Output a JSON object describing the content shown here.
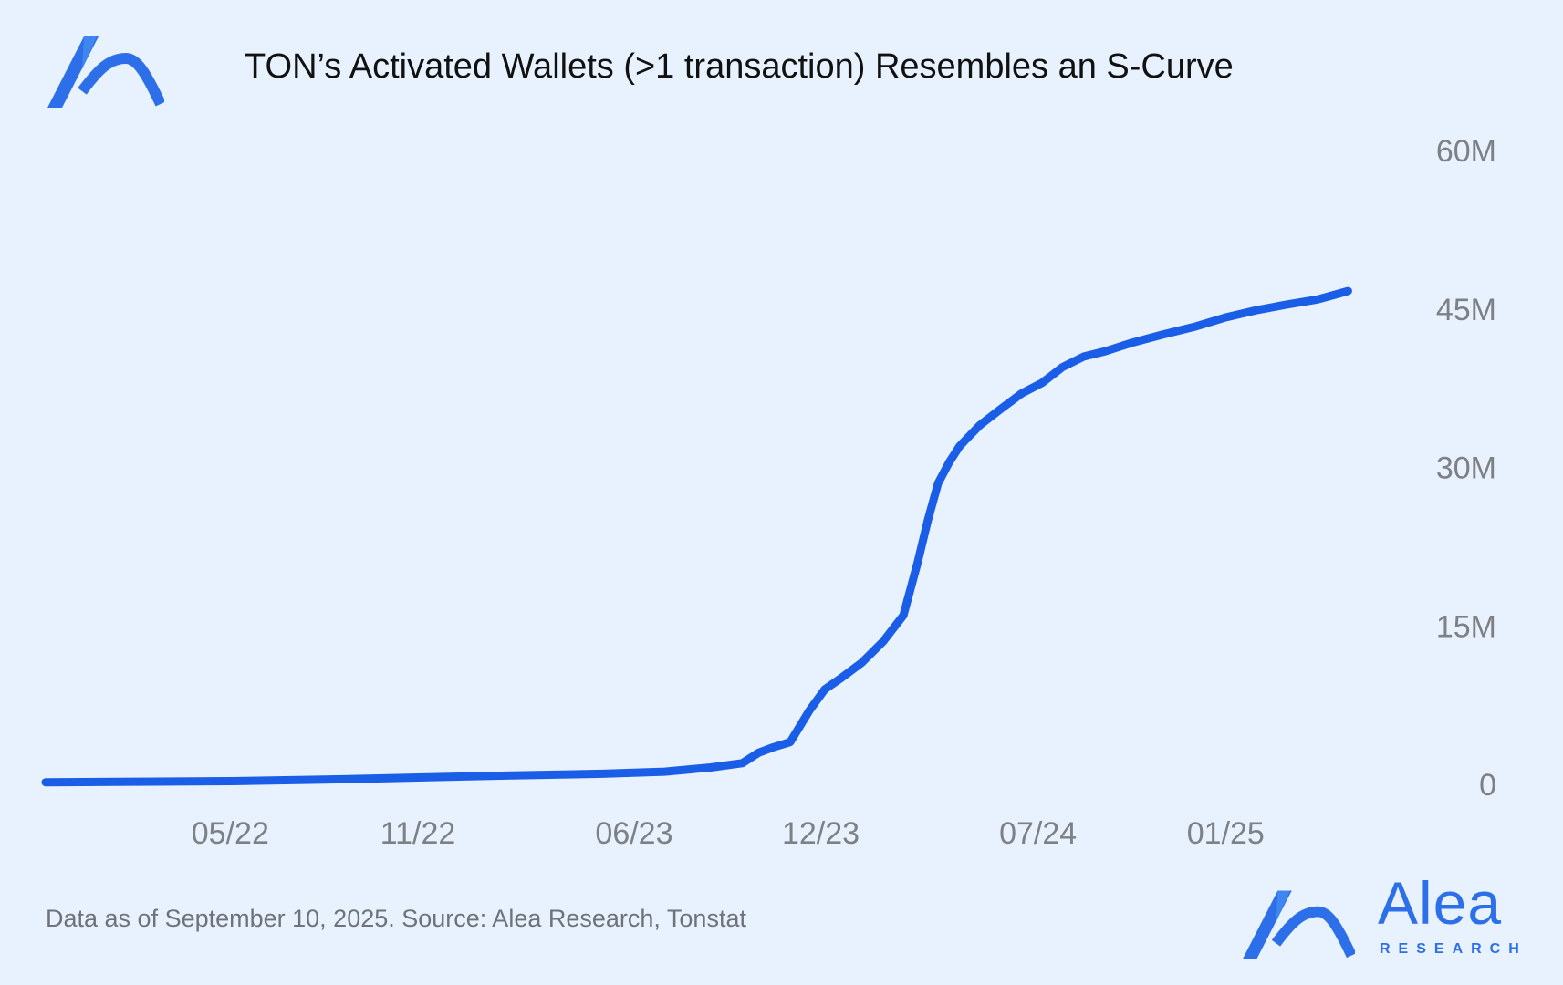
{
  "header": {
    "title": "TON’s Activated Wallets (>1 transaction) Resembles an S-Curve",
    "logo_icon": "alea-logo-icon"
  },
  "footer": {
    "note": "Data as of September 10, 2025. Source: Alea Research, Tonstat"
  },
  "brand": {
    "name": "Alea",
    "subtitle": "RESEARCH",
    "icon": "alea-logo-icon"
  },
  "colors": {
    "background": "#e8f2fe",
    "line": "#1a5ee8",
    "brand": "#2d6fe8",
    "tick_text": "#7d8084"
  },
  "chart_data": {
    "type": "line",
    "title": "TON’s Activated Wallets (>1 transaction) Resembles an S-Curve",
    "xlabel": "",
    "ylabel": "",
    "x_ticks": [
      "05/22",
      "11/22",
      "06/23",
      "12/23",
      "07/24",
      "01/25"
    ],
    "x_tick_dates": [
      "2022-05-01",
      "2022-11-01",
      "2023-06-01",
      "2023-12-01",
      "2024-07-01",
      "2025-01-01"
    ],
    "y_ticks": [
      "0",
      "15M",
      "30M",
      "45M",
      "60M"
    ],
    "y_tick_values": [
      0,
      15000000,
      30000000,
      45000000,
      60000000
    ],
    "ylim": [
      0,
      60000000
    ],
    "xlim": [
      "2021-11-01",
      "2025-09-10"
    ],
    "y_axis_position": "right",
    "grid": false,
    "legend": "none",
    "series": [
      {
        "x": [
          "2021-11-01",
          "2022-02-01",
          "2022-05-01",
          "2022-08-01",
          "2022-11-01",
          "2023-02-01",
          "2023-05-01",
          "2023-07-01",
          "2023-08-15",
          "2023-09-15",
          "2023-10-01",
          "2023-10-15",
          "2023-11-01",
          "2023-11-20",
          "2023-12-05",
          "2023-12-20",
          "2024-01-10",
          "2024-01-31",
          "2024-02-20",
          "2024-03-05",
          "2024-03-15",
          "2024-03-25",
          "2024-04-05",
          "2024-04-15",
          "2024-04-25",
          "2024-05-05",
          "2024-05-25",
          "2024-06-15",
          "2024-07-05",
          "2024-07-25",
          "2024-08-15",
          "2024-09-05",
          "2024-10-01",
          "2024-11-01",
          "2024-12-01",
          "2025-01-01",
          "2025-02-01",
          "2025-03-01",
          "2025-04-01",
          "2025-04-20",
          "2025-05-01"
        ],
        "values": [
          200000,
          250000,
          300000,
          450000,
          650000,
          850000,
          1000000,
          1200000,
          1600000,
          2000000,
          3000000,
          3500000,
          4000000,
          7000000,
          9000000,
          10000000,
          11500000,
          13500000,
          16000000,
          21000000,
          25000000,
          28500000,
          30500000,
          32000000,
          33000000,
          34000000,
          35500000,
          37000000,
          38000000,
          39500000,
          40500000,
          41000000,
          41800000,
          42600000,
          43300000,
          44200000,
          44900000,
          45400000,
          45900000,
          46400000,
          46700000
        ]
      }
    ]
  }
}
